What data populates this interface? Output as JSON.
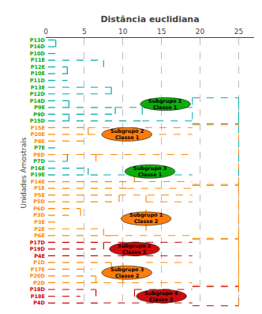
{
  "chart_data": {
    "type": "dendrogram",
    "xlabel": "Distância euclidiana",
    "ylabel": "Unidades Amostrais",
    "xlim": [
      0,
      27
    ],
    "xticks": [
      0,
      5,
      10,
      15,
      20,
      25
    ],
    "grid": true,
    "categories": [
      "P13D",
      "P16D",
      "P10D",
      "P11E",
      "P12E",
      "P10E",
      "P11D",
      "P13E",
      "P12D",
      "P14D",
      "P9E",
      "P9D",
      "P15D",
      "P15E",
      "P20E",
      "P8E",
      "P7E",
      "P8D",
      "P7D",
      "P16E",
      "P19E",
      "P14E",
      "P1E",
      "P5E",
      "P5D",
      "P6D",
      "P3D",
      "P3E",
      "P2E",
      "P6E",
      "P17D",
      "P19D",
      "P4E",
      "P1D",
      "P17E",
      "P20D",
      "P2D",
      "P18D",
      "P18E",
      "P4D"
    ],
    "label_colors": [
      "#00aa00",
      "#00aa00",
      "#00aa00",
      "#00aa00",
      "#00aa00",
      "#00aa00",
      "#00aa00",
      "#00aa00",
      "#00aa00",
      "#00aa00",
      "#00aa00",
      "#00aa00",
      "#00aa00",
      "#ff8800",
      "#ff8800",
      "#ff8800",
      "#00aa00",
      "#ff8800",
      "#00aa00",
      "#00aa00",
      "#00aa00",
      "#ff8800",
      "#ff8800",
      "#ff8800",
      "#ff8800",
      "#ff8800",
      "#ff8800",
      "#ff8800",
      "#ff8800",
      "#ff8800",
      "#cc0000",
      "#cc0000",
      "#cc0000",
      "#ff8800",
      "#ff8800",
      "#ff8800",
      "#ff8800",
      "#cc0000",
      "#cc0000",
      "#cc0000"
    ],
    "h_segments": [
      [
        0,
        0.3,
        1.3,
        "#00aaaa"
      ],
      [
        1,
        0.3,
        1.3,
        "#00aaaa"
      ],
      [
        2,
        0.3,
        1.3,
        "#00aaaa"
      ],
      [
        3,
        0.3,
        7.5,
        "#00aaaa"
      ],
      [
        4,
        0.3,
        2.8,
        "#00aaaa"
      ],
      [
        5,
        0.3,
        2.8,
        "#00aaaa"
      ],
      [
        6,
        0.3,
        2.8,
        "#00aaaa"
      ],
      [
        7,
        0.3,
        8.5,
        "#00aaaa"
      ],
      [
        8,
        0.3,
        8.5,
        "#00aaaa"
      ],
      [
        9,
        0.3,
        3.0,
        "#00aaaa"
      ],
      [
        10,
        0.3,
        9.0,
        "#00aaaa"
      ],
      [
        11,
        0.3,
        9.0,
        "#00aaaa"
      ],
      [
        12,
        0.3,
        12.5,
        "#00aaaa"
      ],
      [
        13,
        0.3,
        5.5,
        "#ff8800"
      ],
      [
        14,
        0.3,
        5.5,
        "#ff8800"
      ],
      [
        15,
        0.3,
        5.5,
        "#ff8800"
      ],
      [
        16,
        0.3,
        1.3,
        "#00aaaa"
      ],
      [
        17,
        0.3,
        6.5,
        "#ff8800"
      ],
      [
        18,
        0.3,
        2.8,
        "#00aaaa"
      ],
      [
        19,
        0.3,
        5.5,
        "#00aaaa"
      ],
      [
        20,
        0.3,
        7.5,
        "#00aaaa"
      ],
      [
        21,
        0.3,
        11.5,
        "#ff8800"
      ],
      [
        22,
        0.3,
        10.5,
        "#ff8800"
      ],
      [
        23,
        0.3,
        9.5,
        "#ff8800"
      ],
      [
        24,
        0.3,
        9.5,
        "#ff8800"
      ],
      [
        25,
        0.3,
        4.5,
        "#ff8800"
      ],
      [
        26,
        0.3,
        3.0,
        "#ff8800"
      ],
      [
        27,
        0.3,
        2.0,
        "#ff8800"
      ],
      [
        28,
        0.3,
        7.5,
        "#ff8800"
      ],
      [
        29,
        0.3,
        8.5,
        "#ff8800"
      ],
      [
        30,
        0.3,
        7.5,
        "#cc0000"
      ],
      [
        31,
        0.3,
        6.5,
        "#cc0000"
      ],
      [
        32,
        0.3,
        7.5,
        "#cc0000"
      ],
      [
        33,
        0.3,
        8.5,
        "#ff8800"
      ],
      [
        34,
        0.3,
        6.0,
        "#ff8800"
      ],
      [
        35,
        0.3,
        6.5,
        "#ff8800"
      ],
      [
        36,
        0.3,
        7.5,
        "#ff8800"
      ],
      [
        37,
        0.3,
        6.5,
        "#cc0000"
      ],
      [
        38,
        0.3,
        4.5,
        "#cc0000"
      ],
      [
        39,
        0.3,
        7.5,
        "#cc0000"
      ]
    ],
    "v_segments": [
      [
        1.3,
        0,
        2,
        "#00aaaa"
      ],
      [
        2.8,
        4,
        6,
        "#00aaaa"
      ],
      [
        7.5,
        3,
        4,
        "#00aaaa"
      ],
      [
        8.5,
        7,
        8,
        "#00aaaa"
      ],
      [
        9.0,
        10,
        11,
        "#00aaaa"
      ],
      [
        3.0,
        9,
        12,
        "#00aaaa"
      ],
      [
        12.5,
        10,
        12,
        "#00aaaa"
      ],
      [
        5.5,
        13,
        15,
        "#ff8800"
      ],
      [
        6.5,
        17,
        18,
        "#ff8800"
      ],
      [
        2.8,
        18,
        17,
        "#00aaaa"
      ],
      [
        5.5,
        19,
        20,
        "#00aaaa"
      ],
      [
        11.5,
        20,
        21,
        "#ff8800"
      ],
      [
        4.5,
        25,
        27,
        "#ff8800"
      ],
      [
        7.5,
        28,
        29,
        "#ff8800"
      ],
      [
        9.5,
        23,
        24,
        "#ff8800"
      ],
      [
        13.0,
        23,
        29,
        "#ff8800"
      ],
      [
        7.5,
        30,
        32,
        "#cc0000"
      ],
      [
        13.0,
        30,
        32,
        "#cc0000"
      ],
      [
        8.5,
        33,
        34,
        "#ff8800"
      ],
      [
        6.5,
        35,
        36,
        "#ff8800"
      ],
      [
        10.0,
        33,
        36,
        "#ff8800"
      ],
      [
        6.5,
        37,
        38,
        "#cc0000"
      ],
      [
        11.5,
        37,
        39,
        "#cc0000"
      ]
    ],
    "boxes": [
      [
        19.0,
        25.0,
        9,
        12,
        "#00aaaa"
      ],
      [
        19.0,
        25.0,
        13,
        21,
        "#ff8800"
      ],
      [
        19.0,
        25.0,
        22,
        29,
        "#ff8800"
      ],
      [
        19.0,
        25.0,
        30,
        36,
        "#ff8800"
      ],
      [
        19.0,
        25.0,
        37,
        39,
        "#cc0000"
      ]
    ],
    "box_vlines": [
      [
        25.0,
        9,
        21,
        "#00aaaa"
      ],
      [
        25.0,
        22,
        39,
        "#ff8800"
      ],
      [
        19.0,
        9,
        12,
        "#00aaaa"
      ]
    ],
    "links": [
      [
        10,
        9.0,
        19.0,
        "#00aaaa"
      ],
      [
        12,
        12.5,
        19.0,
        "#00aaaa"
      ],
      [
        13,
        5.5,
        19.0,
        "#ff8800"
      ],
      [
        14,
        5.5,
        19.0,
        "#ff8800"
      ],
      [
        17,
        6.5,
        19.0,
        "#ff8800"
      ],
      [
        20,
        7.5,
        19.0,
        "#00aaaa"
      ],
      [
        21,
        11.5,
        19.0,
        "#ff8800"
      ],
      [
        22,
        10.5,
        19.0,
        "#ff8800"
      ],
      [
        23,
        9.5,
        19.0,
        "#ff8800"
      ],
      [
        24,
        13.0,
        19.0,
        "#ff8800"
      ],
      [
        29,
        8.5,
        19.0,
        "#ff8800"
      ],
      [
        30,
        7.5,
        19.0,
        "#cc0000"
      ],
      [
        32,
        7.5,
        19.0,
        "#cc0000"
      ],
      [
        33,
        13.0,
        19.0,
        "#ff8800"
      ],
      [
        36,
        7.5,
        19.0,
        "#ff8800"
      ],
      [
        37,
        11.5,
        19.0,
        "#cc0000"
      ],
      [
        39,
        7.5,
        19.0,
        "#cc0000"
      ]
    ],
    "ellipses": [
      {
        "cx": 15.5,
        "cy": 9.5,
        "w": 6.5,
        "h": 1.9,
        "color": "#00aa00",
        "label": "Subgrupo 1\nClasse 1"
      },
      {
        "cx": 10.5,
        "cy": 14.0,
        "w": 6.5,
        "h": 2.0,
        "color": "#ff7700",
        "label": "Subgrupo 2\nClasse 1"
      },
      {
        "cx": 13.5,
        "cy": 19.5,
        "w": 6.5,
        "h": 2.0,
        "color": "#00aa00",
        "label": "Subgrupo 3\nClasse 1"
      },
      {
        "cx": 13.0,
        "cy": 26.5,
        "w": 6.5,
        "h": 2.0,
        "color": "#ff7700",
        "label": "Subgrupo 1\nClasse 2"
      },
      {
        "cx": 11.5,
        "cy": 31.0,
        "w": 6.5,
        "h": 2.0,
        "color": "#cc0000",
        "label": "Subgrupo 2\nClasse 2"
      },
      {
        "cx": 10.5,
        "cy": 34.5,
        "w": 6.5,
        "h": 2.0,
        "color": "#ff7700",
        "label": "Subgrupo 3\nClasse 2"
      },
      {
        "cx": 15.0,
        "cy": 38.0,
        "w": 6.5,
        "h": 2.0,
        "color": "#cc0000",
        "label": "Subgrupo 4\nClasse 2"
      }
    ]
  }
}
